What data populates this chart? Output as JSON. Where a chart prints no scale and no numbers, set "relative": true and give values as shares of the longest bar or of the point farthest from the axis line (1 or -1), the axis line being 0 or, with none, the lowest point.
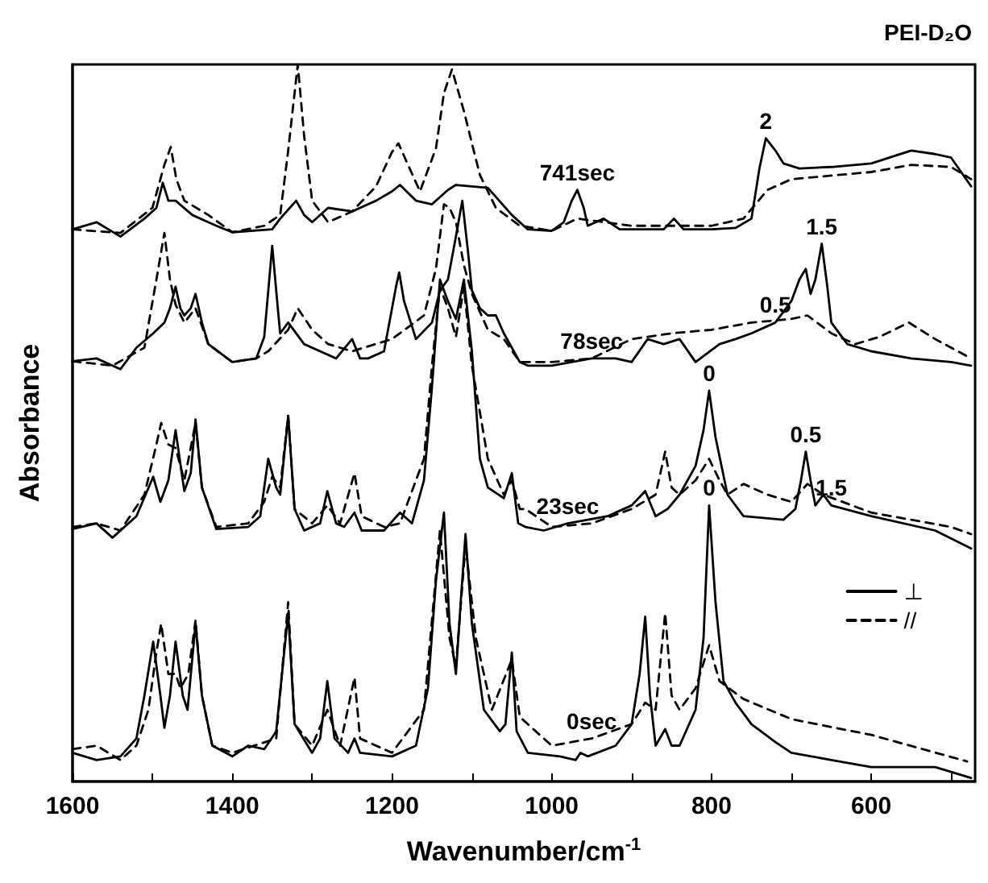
{
  "chart_data": {
    "type": "line",
    "title": "PEI-D₂O",
    "xlabel": "Wavenumber/cm$^{-1}$",
    "ylabel": "Absorbance",
    "relative": true,
    "tick_labels": "x",
    "grid": false,
    "legend": "right",
    "marker": "none",
    "xlim": [
      1600,
      470
    ],
    "xticks": [
      1600,
      {
        "value": 1500,
        "label": null
      },
      1400,
      {
        "value": 1300,
        "label": null
      },
      1200,
      {
        "value": 1100,
        "label": null
      },
      1000,
      {
        "value": 900,
        "label": null
      },
      800,
      {
        "value": 700,
        "label": null
      },
      600,
      {
        "value": 500,
        "label": null
      }
    ],
    "series": [
      {
        "name": "⊥",
        "color": "#000000",
        "line_style": "solid",
        "x": [
          1600,
          1570,
          1540,
          1520,
          1510,
          1499,
          1490,
          1485,
          1478,
          1471,
          1462,
          1456,
          1446,
          1438,
          1425,
          1400,
          1380,
          1360,
          1345,
          1330,
          1322,
          1300,
          1290,
          1281,
          1272,
          1255,
          1247,
          1240,
          1200,
          1170,
          1155,
          1145,
          1135,
          1128,
          1120,
          1114,
          1108,
          1100,
          1085,
          1065,
          1058,
          1050,
          1044,
          1030,
          990,
          970,
          964,
          955,
          920,
          900,
          890,
          883,
          877,
          870,
          858,
          850,
          840,
          820,
          810,
          803,
          795,
          785,
          770,
          750,
          720,
          700,
          650,
          600,
          520,
          475
        ],
        "values": [
          0.04,
          0.03,
          0.035,
          0.06,
          0.12,
          0.195,
          0.12,
          0.075,
          0.12,
          0.195,
          0.12,
          0.1,
          0.22,
          0.12,
          0.05,
          0.035,
          0.05,
          0.045,
          0.07,
          0.235,
          0.08,
          0.04,
          0.06,
          0.14,
          0.06,
          0.04,
          0.06,
          0.04,
          0.035,
          0.05,
          0.13,
          0.28,
          0.375,
          0.22,
          0.15,
          0.25,
          0.345,
          0.22,
          0.1,
          0.07,
          0.08,
          0.18,
          0.07,
          0.04,
          0.035,
          0.03,
          0.04,
          0.035,
          0.05,
          0.08,
          0.15,
          0.23,
          0.12,
          0.05,
          0.073,
          0.05,
          0.05,
          0.1,
          0.2,
          0.385,
          0.25,
          0.14,
          0.11,
          0.08,
          0.055,
          0.04,
          0.03,
          0.02,
          0.02,
          0.005
        ]
      },
      {
        "name": "//",
        "color": "#000000",
        "line_style": "dashed",
        "x": [
          1600,
          1570,
          1540,
          1520,
          1505,
          1495,
          1489,
          1480,
          1471,
          1465,
          1455,
          1446,
          1438,
          1425,
          1400,
          1345,
          1330,
          1322,
          1300,
          1281,
          1265,
          1247,
          1240,
          1200,
          1160,
          1140,
          1128,
          1120,
          1108,
          1095,
          1075,
          1050,
          1040,
          1030,
          1000,
          950,
          900,
          883,
          870,
          858,
          850,
          840,
          820,
          803,
          790,
          760,
          700,
          600,
          480
        ],
        "values": [
          0.045,
          0.05,
          0.03,
          0.05,
          0.1,
          0.18,
          0.22,
          0.15,
          0.15,
          0.13,
          0.15,
          0.225,
          0.12,
          0.05,
          0.04,
          0.06,
          0.25,
          0.08,
          0.05,
          0.1,
          0.05,
          0.145,
          0.06,
          0.04,
          0.1,
          0.35,
          0.2,
          0.16,
          0.33,
          0.2,
          0.1,
          0.17,
          0.09,
          0.08,
          0.05,
          0.06,
          0.08,
          0.11,
          0.1,
          0.235,
          0.12,
          0.1,
          0.13,
          0.19,
          0.14,
          0.115,
          0.087,
          0.065,
          0.028
        ]
      },
      {
        "color": "#000000",
        "line_style": "solid",
        "x": [
          1600,
          1570,
          1550,
          1520,
          1499,
          1490,
          1480,
          1471,
          1462,
          1460,
          1452,
          1446,
          1438,
          1420,
          1380,
          1365,
          1355,
          1345,
          1340,
          1330,
          1322,
          1310,
          1290,
          1281,
          1270,
          1260,
          1247,
          1238,
          1210,
          1190,
          1175,
          1160,
          1150,
          1140,
          1130,
          1120,
          1110,
          1100,
          1090,
          1080,
          1060,
          1050,
          1042,
          1033,
          1010,
          980,
          930,
          900,
          883,
          870,
          855,
          840,
          820,
          810,
          803,
          795,
          780,
          760,
          710,
          695,
          688,
          682,
          676,
          670,
          660,
          650,
          600,
          520,
          475
        ],
        "values": [
          0.352,
          0.36,
          0.34,
          0.37,
          0.425,
          0.39,
          0.42,
          0.49,
          0.42,
          0.405,
          0.43,
          0.505,
          0.41,
          0.352,
          0.355,
          0.37,
          0.45,
          0.41,
          0.4,
          0.51,
          0.38,
          0.35,
          0.36,
          0.405,
          0.36,
          0.355,
          0.375,
          0.35,
          0.35,
          0.375,
          0.36,
          0.42,
          0.55,
          0.7,
          0.67,
          0.645,
          0.7,
          0.6,
          0.45,
          0.41,
          0.395,
          0.43,
          0.36,
          0.355,
          0.35,
          0.36,
          0.37,
          0.385,
          0.405,
          0.37,
          0.38,
          0.4,
          0.44,
          0.49,
          0.545,
          0.48,
          0.4,
          0.37,
          0.365,
          0.38,
          0.42,
          0.46,
          0.42,
          0.385,
          0.4,
          0.385,
          0.37,
          0.35,
          0.325
        ]
      },
      {
        "color": "#000000",
        "line_style": "dashed",
        "x": [
          1600,
          1570,
          1540,
          1510,
          1495,
          1489,
          1480,
          1471,
          1460,
          1446,
          1438,
          1420,
          1380,
          1360,
          1350,
          1340,
          1330,
          1322,
          1300,
          1281,
          1265,
          1247,
          1238,
          1210,
          1190,
          1160,
          1150,
          1140,
          1130,
          1120,
          1110,
          1100,
          1080,
          1060,
          1050,
          1040,
          1033,
          1000,
          950,
          900,
          870,
          858,
          850,
          840,
          820,
          803,
          790,
          780,
          760,
          730,
          700,
          680,
          660,
          600,
          500,
          475
        ],
        "values": [
          0.355,
          0.36,
          0.35,
          0.4,
          0.47,
          0.5,
          0.47,
          0.465,
          0.42,
          0.5,
          0.41,
          0.355,
          0.36,
          0.39,
          0.425,
          0.41,
          0.51,
          0.38,
          0.36,
          0.385,
          0.36,
          0.43,
          0.37,
          0.355,
          0.36,
          0.45,
          0.58,
          0.69,
          0.66,
          0.62,
          0.69,
          0.58,
          0.45,
          0.4,
          0.42,
          0.38,
          0.38,
          0.355,
          0.36,
          0.38,
          0.4,
          0.46,
          0.41,
          0.4,
          0.42,
          0.45,
          0.42,
          0.4,
          0.415,
          0.4,
          0.39,
          0.415,
          0.4,
          0.375,
          0.355,
          0.345
        ]
      },
      {
        "color": "#000000",
        "line_style": "solid",
        "x": [
          1600,
          1570,
          1540,
          1520,
          1499,
          1485,
          1478,
          1471,
          1465,
          1460,
          1452,
          1446,
          1438,
          1430,
          1400,
          1370,
          1360,
          1350,
          1343,
          1340,
          1330,
          1310,
          1290,
          1270,
          1250,
          1240,
          1230,
          1210,
          1195,
          1191,
          1185,
          1170,
          1150,
          1140,
          1130,
          1120,
          1112,
          1105,
          1100,
          1090,
          1080,
          1070,
          1060,
          1040,
          1030,
          1000,
          950,
          920,
          900,
          880,
          860,
          840,
          820,
          790,
          770,
          750,
          720,
          700,
          690,
          682,
          676,
          670,
          662,
          655,
          650,
          630,
          600,
          550,
          500,
          475
        ],
        "values": [
          0.586,
          0.59,
          0.575,
          0.605,
          0.625,
          0.64,
          0.66,
          0.69,
          0.66,
          0.65,
          0.66,
          0.68,
          0.64,
          0.61,
          0.585,
          0.59,
          0.62,
          0.747,
          0.66,
          0.625,
          0.64,
          0.61,
          0.6,
          0.59,
          0.617,
          0.59,
          0.59,
          0.6,
          0.69,
          0.71,
          0.67,
          0.617,
          0.64,
          0.685,
          0.7,
          0.76,
          0.81,
          0.74,
          0.685,
          0.66,
          0.65,
          0.65,
          0.625,
          0.585,
          0.58,
          0.58,
          0.59,
          0.59,
          0.585,
          0.617,
          0.61,
          0.617,
          0.585,
          0.61,
          0.617,
          0.625,
          0.64,
          0.67,
          0.7,
          0.715,
          0.68,
          0.7,
          0.75,
          0.69,
          0.64,
          0.61,
          0.6,
          0.59,
          0.585,
          0.58
        ]
      },
      {
        "color": "#000000",
        "line_style": "dashed",
        "x": [
          1600,
          1550,
          1510,
          1495,
          1485,
          1478,
          1471,
          1460,
          1446,
          1430,
          1400,
          1370,
          1355,
          1330,
          1318,
          1300,
          1280,
          1250,
          1200,
          1160,
          1145,
          1135,
          1128,
          1120,
          1110,
          1100,
          1080,
          1060,
          1040,
          1000,
          950,
          900,
          850,
          800,
          750,
          700,
          680,
          650,
          620,
          590,
          553,
          520,
          475
        ],
        "values": [
          0.586,
          0.58,
          0.605,
          0.7,
          0.765,
          0.7,
          0.665,
          0.64,
          0.66,
          0.61,
          0.585,
          0.59,
          0.6,
          0.63,
          0.66,
          0.63,
          0.61,
          0.6,
          0.617,
          0.65,
          0.715,
          0.805,
          0.8,
          0.78,
          0.72,
          0.68,
          0.63,
          0.617,
          0.585,
          0.585,
          0.59,
          0.617,
          0.625,
          0.63,
          0.64,
          0.645,
          0.65,
          0.625,
          0.61,
          0.62,
          0.64,
          0.617,
          0.59
        ]
      },
      {
        "color": "#000000",
        "line_style": "solid",
        "x": [
          1600,
          1570,
          1540,
          1510,
          1495,
          1487,
          1480,
          1471,
          1450,
          1420,
          1400,
          1350,
          1340,
          1328,
          1320,
          1310,
          1300,
          1280,
          1250,
          1220,
          1200,
          1190,
          1170,
          1150,
          1130,
          1120,
          1080,
          1050,
          1030,
          1000,
          985,
          975,
          968,
          960,
          955,
          935,
          915,
          900,
          860,
          847,
          835,
          800,
          770,
          750,
          740,
          732,
          720,
          710,
          690,
          650,
          600,
          550,
          520,
          500,
          475
        ],
        "values": [
          0.77,
          0.78,
          0.76,
          0.785,
          0.8,
          0.835,
          0.81,
          0.81,
          0.79,
          0.775,
          0.766,
          0.77,
          0.785,
          0.8,
          0.81,
          0.79,
          0.78,
          0.8,
          0.795,
          0.81,
          0.823,
          0.832,
          0.81,
          0.805,
          0.825,
          0.832,
          0.828,
          0.79,
          0.77,
          0.768,
          0.78,
          0.81,
          0.825,
          0.8,
          0.775,
          0.785,
          0.77,
          0.77,
          0.77,
          0.785,
          0.77,
          0.77,
          0.772,
          0.785,
          0.855,
          0.897,
          0.88,
          0.862,
          0.855,
          0.857,
          0.862,
          0.88,
          0.875,
          0.87,
          0.83
        ]
      },
      {
        "color": "#000000",
        "line_style": "dashed",
        "x": [
          1600,
          1540,
          1500,
          1485,
          1477,
          1470,
          1460,
          1430,
          1400,
          1360,
          1340,
          1330,
          1318,
          1310,
          1300,
          1280,
          1250,
          1220,
          1200,
          1192,
          1180,
          1165,
          1145,
          1135,
          1125,
          1110,
          1100,
          1090,
          1070,
          1040,
          1000,
          968,
          900,
          800,
          760,
          730,
          700,
          650,
          600,
          550,
          500,
          475
        ],
        "values": [
          0.77,
          0.765,
          0.8,
          0.86,
          0.885,
          0.84,
          0.81,
          0.79,
          0.766,
          0.775,
          0.79,
          0.88,
          1.0,
          0.9,
          0.81,
          0.78,
          0.795,
          0.83,
          0.878,
          0.89,
          0.86,
          0.823,
          0.883,
          0.96,
          0.993,
          0.935,
          0.89,
          0.846,
          0.8,
          0.775,
          0.768,
          0.785,
          0.775,
          0.775,
          0.785,
          0.825,
          0.84,
          0.845,
          0.85,
          0.86,
          0.857,
          0.84
        ]
      }
    ],
    "annotations": [
      {
        "text": "741sec",
        "x": 968,
        "y": 0.825
      },
      {
        "text": "78sec",
        "x": 950,
        "y": 0.59
      },
      {
        "text": "23sec",
        "x": 980,
        "y": 0.36
      },
      {
        "text": "0sec",
        "x": 950,
        "y": 0.06
      },
      {
        "text": "2",
        "x": 732,
        "y": 0.897
      },
      {
        "text": "1.5",
        "x": 662,
        "y": 0.75
      },
      {
        "text": "0.5",
        "x": 720,
        "y": 0.64
      },
      {
        "text": "0",
        "x": 803,
        "y": 0.545
      },
      {
        "text": "0.5",
        "x": 682,
        "y": 0.46
      },
      {
        "text": "1.5",
        "x": 650,
        "y": 0.385
      },
      {
        "text": "0",
        "x": 803,
        "y": 0.385
      }
    ]
  }
}
